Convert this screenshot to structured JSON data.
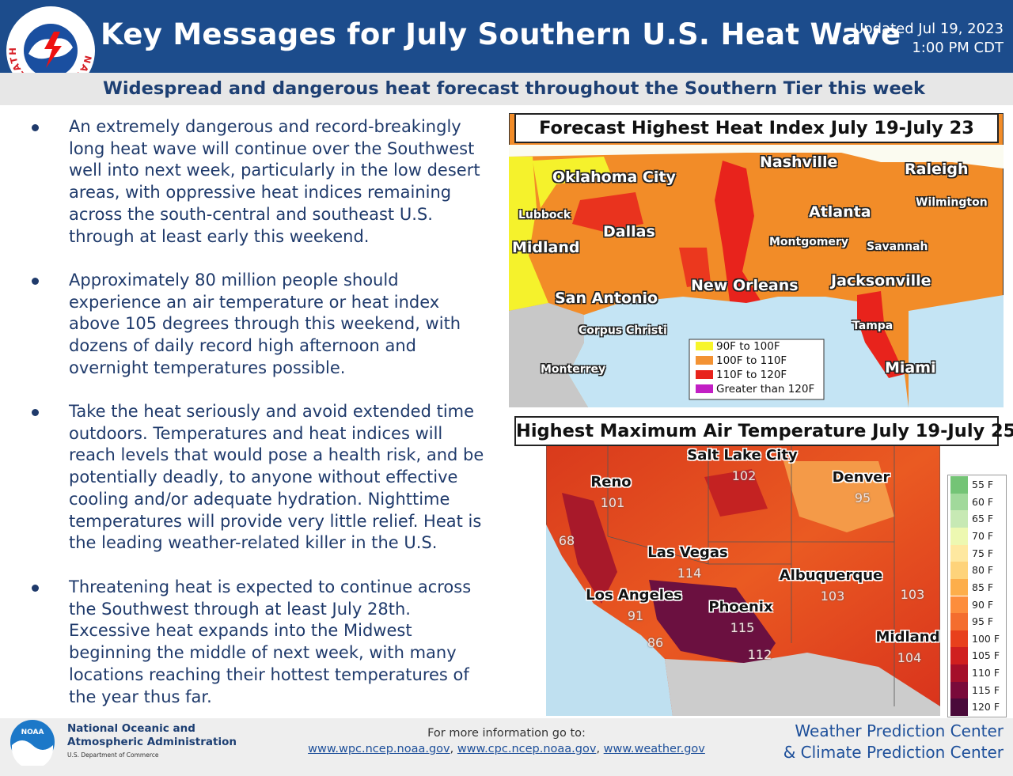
{
  "header": {
    "logo_text": "NATIONAL WEATHER SERVICE",
    "title": "Key Messages for July Southern U.S. Heat Wave",
    "updated": [
      "Updated Jul 19, 2023",
      "1:00 PM CDT"
    ],
    "subtitle": "Widespread and dangerous heat forecast throughout the Southern Tier this week"
  },
  "bullets": [
    "An extremely dangerous and record-breakingly long heat wave will continue over the Southwest well into next week, particularly in the low desert areas, with oppressive heat indices remaining across the south-central and southeast U.S. through at least early this weekend.",
    "Approximately 80 million people should experience an air temperature or heat index above 105 degrees through this weekend, with dozens of daily record high afternoon and overnight temperatures possible.",
    "Take the heat seriously and avoid extended time outdoors. Temperatures and heat indices will reach levels that would pose a health risk, and be potentially deadly, to anyone without effective cooling and/or adequate hydration. Nighttime temperatures will provide very little relief. Heat is the leading weather-related killer in the U.S.",
    "Threatening heat is expected to continue across the Southwest through at least July 28th. Excessive heat expands into the Midwest beginning the middle of next week, with many locations reaching their hottest temperatures of the year thus far."
  ],
  "heat_index_map": {
    "title": "Forecast Highest Heat Index July 19-July 23",
    "cities": [
      "Oklahoma City",
      "Nashville",
      "Raleigh",
      "Lubbock",
      "Wilmington",
      "Atlanta",
      "Dallas",
      "Midland",
      "Montgomery",
      "Savannah",
      "New Orleans",
      "Jacksonville",
      "San Antonio",
      "Tampa",
      "Corpus Christi",
      "Miami",
      "Monterrey"
    ],
    "legend": [
      {
        "label": "90F to 100F",
        "color": "#f7f52a"
      },
      {
        "label": "100F to 110F",
        "color": "#f39233"
      },
      {
        "label": "110F to 120F",
        "color": "#e8231c"
      },
      {
        "label": "Greater than 120F",
        "color": "#c21fc4"
      }
    ]
  },
  "temperature_map": {
    "title": "Highest Maximum Air Temperature July 19-July 25",
    "cities": [
      {
        "name": "Salt Lake City",
        "value": 102
      },
      {
        "name": "Reno",
        "value": 101
      },
      {
        "name": "Denver",
        "value": 95
      },
      {
        "name": "Las Vegas",
        "value": 114
      },
      {
        "name": "Albuquerque",
        "value": 103
      },
      {
        "name": "Los Angeles",
        "value": 91
      },
      {
        "name": "Phoenix",
        "value": 115
      },
      {
        "name": "Midland",
        "value": 104
      }
    ],
    "other_values": [
      68,
      86,
      112,
      103
    ],
    "legend": [
      {
        "label": "55 F",
        "color": "#74c476"
      },
      {
        "label": "60 F",
        "color": "#a1d99b"
      },
      {
        "label": "65 F",
        "color": "#c7e9b4"
      },
      {
        "label": "70 F",
        "color": "#edf8b1"
      },
      {
        "label": "75 F",
        "color": "#fee8a0"
      },
      {
        "label": "80 F",
        "color": "#fed37a"
      },
      {
        "label": "85 F",
        "color": "#fdae4b"
      },
      {
        "label": "90 F",
        "color": "#fd8d3c"
      },
      {
        "label": "95 F",
        "color": "#f46d2e"
      },
      {
        "label": "100 F",
        "color": "#e8401c"
      },
      {
        "label": "105 F",
        "color": "#d01f1f"
      },
      {
        "label": "110 F",
        "color": "#a50f2a"
      },
      {
        "label": "115 F",
        "color": "#7a0a3a"
      },
      {
        "label": "120 F",
        "color": "#4a0a3a"
      }
    ]
  },
  "footer": {
    "noaa_logo": "NOAA",
    "agency": [
      "National Oceanic and",
      "Atmospheric Administration"
    ],
    "department": "U.S. Department of Commerce",
    "info": "For more information go to:",
    "links": [
      "www.wpc.ncep.noaa.gov",
      "www.cpc.ncep.noaa.gov",
      "www.weather.gov"
    ],
    "separator": ",",
    "centers": [
      "Weather Prediction Center",
      "& Climate Prediction Center"
    ]
  }
}
